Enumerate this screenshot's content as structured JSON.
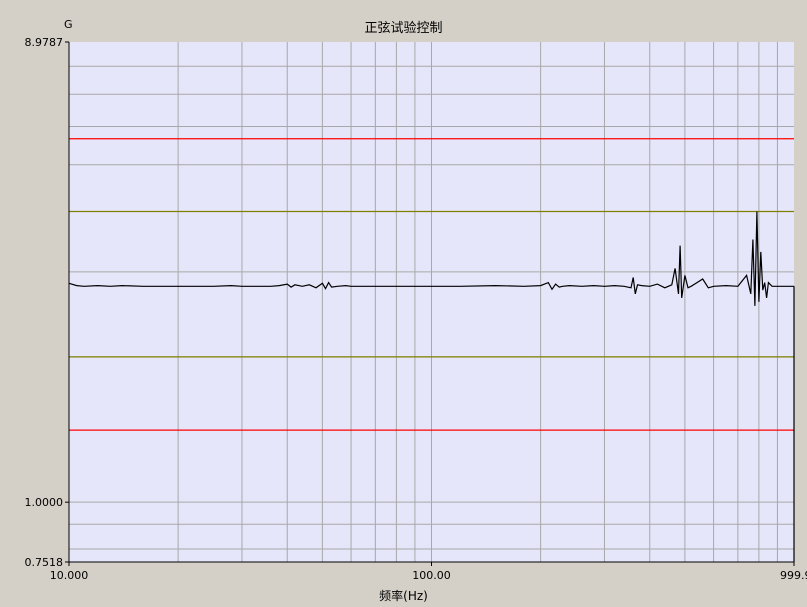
{
  "chart_data": {
    "type": "line",
    "title": "正弦试验控制",
    "y_unit": "G",
    "xlabel": "频率(Hz)",
    "x_scale": "log",
    "y_scale": "log",
    "xlim": [
      10.0,
      999.9
    ],
    "ylim": [
      0.7518,
      8.9787
    ],
    "x_ticks": [
      {
        "value": 10,
        "label": "10.000"
      },
      {
        "value": 100,
        "label": "100.00"
      },
      {
        "value": 999.9,
        "label": "999.9"
      }
    ],
    "y_ticks": [
      {
        "value": 0.7518,
        "label": "0.7518"
      },
      {
        "value": 1.0,
        "label": "1.0000"
      },
      {
        "value": 8.9787,
        "label": "8.9787"
      }
    ],
    "grid": true,
    "background_color": "#e6e6fa",
    "reference_lines": [
      {
        "kind": "abort-upper",
        "value": 5.66,
        "color": "#ff0000"
      },
      {
        "kind": "alarm-upper",
        "value": 4.0,
        "color": "#808000"
      },
      {
        "kind": "alarm-lower",
        "value": 2.0,
        "color": "#808000"
      },
      {
        "kind": "abort-lower",
        "value": 1.41,
        "color": "#ff0000"
      }
    ],
    "series": [
      {
        "color": "#000000",
        "x": [
          10,
          10.5,
          11,
          12,
          13,
          14,
          16,
          18,
          20,
          22,
          25,
          28,
          30,
          33,
          36,
          38,
          40,
          41,
          42,
          44,
          46,
          48,
          50,
          51,
          52,
          53,
          55,
          58,
          60,
          70,
          80,
          100,
          120,
          150,
          180,
          200,
          210,
          215,
          220,
          225,
          230,
          240,
          260,
          280,
          300,
          320,
          340,
          355,
          360,
          365,
          370,
          380,
          400,
          420,
          440,
          460,
          470,
          480,
          485,
          490,
          500,
          510,
          520,
          540,
          560,
          580,
          600,
          650,
          700,
          740,
          760,
          770,
          780,
          790,
          800,
          810,
          820,
          830,
          840,
          850,
          870,
          900,
          950,
          999.9
        ],
        "y": [
          2.84,
          2.81,
          2.8,
          2.81,
          2.8,
          2.81,
          2.8,
          2.8,
          2.8,
          2.8,
          2.8,
          2.81,
          2.8,
          2.8,
          2.8,
          2.81,
          2.83,
          2.79,
          2.82,
          2.8,
          2.82,
          2.78,
          2.84,
          2.77,
          2.85,
          2.79,
          2.8,
          2.81,
          2.8,
          2.8,
          2.8,
          2.8,
          2.8,
          2.81,
          2.8,
          2.81,
          2.85,
          2.76,
          2.83,
          2.79,
          2.8,
          2.81,
          2.8,
          2.81,
          2.8,
          2.81,
          2.8,
          2.78,
          2.92,
          2.7,
          2.82,
          2.81,
          2.8,
          2.83,
          2.78,
          2.82,
          3.05,
          2.7,
          3.4,
          2.65,
          2.95,
          2.78,
          2.8,
          2.85,
          2.9,
          2.78,
          2.8,
          2.81,
          2.8,
          2.95,
          2.7,
          3.5,
          2.55,
          4.0,
          2.6,
          3.3,
          2.75,
          2.85,
          2.65,
          2.85,
          2.8,
          2.8,
          2.8,
          2.8
        ]
      }
    ]
  }
}
